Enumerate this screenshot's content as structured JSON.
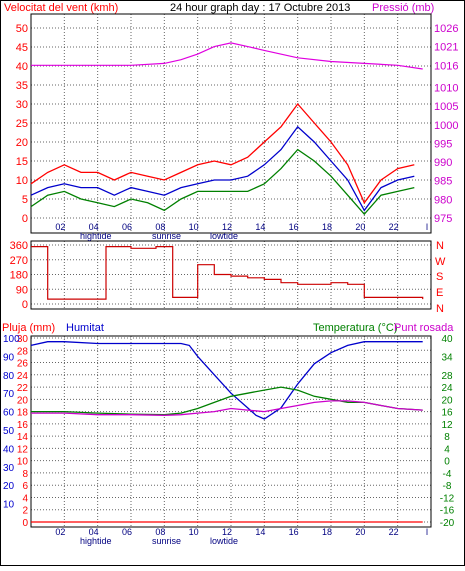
{
  "header": {
    "wind_label": "Velocitat del vent (kmh)",
    "title": "24 hour graph day : 17 Octubre 2013",
    "pressure_label": "Pressió (mb)"
  },
  "labels": {
    "rain": "Pluja (mm)",
    "humidity": "Humitat",
    "temperature": "Temperatura (°C)",
    "dewpoint": "Punt rosada",
    "hightide": "hightide",
    "sunrise": "sunrise",
    "lowtide": "lowtide",
    "compass": [
      "N",
      "W",
      "S",
      "E",
      "N"
    ]
  },
  "colors": {
    "wind_gust": "#ff0000",
    "wind_avg": "#0000cc",
    "wind_low": "#008000",
    "pressure": "#e000e0",
    "direction": "#cc0000",
    "humidity": "#0000cc",
    "temperature": "#008000",
    "dewpoint": "#cc00cc",
    "rain": "#ff0000",
    "axis_left": "#ff0000",
    "axis_right_top": "#cc00cc",
    "axis_right_bottom": "#008000"
  },
  "chart_data": [
    {
      "type": "line",
      "name_hint": "wind and pressure",
      "x_ticks": [
        "02",
        "04",
        "06",
        "08",
        "10",
        "12",
        "14",
        "16",
        "18",
        "20",
        "22",
        "l"
      ],
      "y_left": {
        "label": "Velocitat del vent (kmh)",
        "ticks": [
          0,
          5,
          10,
          15,
          20,
          25,
          30,
          35,
          40,
          45,
          50
        ],
        "range": [
          0,
          50
        ]
      },
      "y_right": {
        "label": "Pressió (mb)",
        "ticks": [
          975,
          980,
          985,
          990,
          995,
          1000,
          1005,
          1010,
          1016,
          1021,
          1026
        ],
        "range": [
          975,
          1026
        ]
      },
      "series": [
        {
          "name": "Pressió (mb)",
          "axis": "right",
          "x": [
            0,
            4,
            6,
            8,
            9,
            10,
            11,
            12,
            13,
            14,
            16,
            18,
            20,
            22,
            23.5
          ],
          "y": [
            1016,
            1016,
            1016,
            1016.5,
            1017.5,
            1019,
            1021,
            1022,
            1021,
            1020,
            1018,
            1017,
            1016.5,
            1016,
            1015
          ]
        },
        {
          "name": "gust",
          "axis": "left",
          "x": [
            0,
            1,
            2,
            3,
            4,
            5,
            6,
            7,
            8,
            9,
            10,
            11,
            12,
            13,
            14,
            15,
            16,
            17,
            18,
            19,
            20,
            21,
            22,
            23
          ],
          "y": [
            9,
            12,
            14,
            12,
            12,
            10,
            12,
            11,
            10,
            12,
            14,
            15,
            14,
            16,
            20,
            24,
            30,
            25,
            20,
            14,
            4,
            10,
            13,
            14
          ]
        },
        {
          "name": "average",
          "axis": "left",
          "x": [
            0,
            1,
            2,
            3,
            4,
            5,
            6,
            7,
            8,
            9,
            10,
            11,
            12,
            13,
            14,
            15,
            16,
            17,
            18,
            19,
            20,
            21,
            22,
            23
          ],
          "y": [
            6,
            8,
            9,
            8,
            8,
            6,
            8,
            7,
            6,
            8,
            9,
            10,
            10,
            11,
            14,
            18,
            24,
            20,
            15,
            10,
            2,
            8,
            10,
            11
          ]
        },
        {
          "name": "low",
          "axis": "left",
          "x": [
            0,
            1,
            2,
            3,
            4,
            5,
            6,
            7,
            8,
            9,
            10,
            11,
            12,
            13,
            14,
            15,
            16,
            17,
            18,
            19,
            20,
            21,
            22,
            23
          ],
          "y": [
            3,
            6,
            7,
            5,
            4,
            3,
            5,
            4,
            2,
            5,
            7,
            7,
            7,
            7,
            9,
            13,
            18,
            15,
            11,
            6,
            1,
            6,
            7,
            8
          ]
        }
      ]
    },
    {
      "type": "line",
      "name_hint": "wind direction",
      "x_ticks": [
        "02",
        "04",
        "06",
        "08",
        "10",
        "12",
        "14",
        "16",
        "18",
        "20",
        "22",
        "l"
      ],
      "y_left": {
        "ticks": [
          0,
          90,
          180,
          270,
          360
        ],
        "range": [
          0,
          360
        ]
      },
      "series": [
        {
          "name": "direction",
          "x": [
            0,
            0.5,
            1,
            1.5,
            2,
            3,
            4,
            4.5,
            5,
            6,
            7,
            7.5,
            8,
            8.5,
            9,
            9.5,
            10,
            11,
            12,
            13,
            14,
            15,
            16,
            17,
            18,
            19,
            20,
            21,
            22,
            23,
            23.5
          ],
          "y": [
            350,
            350,
            30,
            30,
            30,
            30,
            30,
            350,
            350,
            340,
            340,
            350,
            350,
            40,
            40,
            40,
            240,
            180,
            170,
            160,
            150,
            130,
            120,
            120,
            130,
            120,
            40,
            40,
            40,
            40,
            30
          ]
        }
      ]
    },
    {
      "type": "line",
      "name_hint": "rain humidity temperature dewpoint",
      "x_ticks": [
        "02",
        "04",
        "06",
        "08",
        "10",
        "12",
        "14",
        "16",
        "18",
        "20",
        "22",
        "l"
      ],
      "y_left": {
        "label": "Pluja (mm)",
        "ticks": [
          0,
          2,
          4,
          6,
          8,
          10,
          12,
          14,
          16,
          18,
          20,
          22,
          24,
          26,
          28,
          30
        ],
        "range": [
          0,
          30
        ]
      },
      "y_humidity": {
        "label": "Humitat",
        "ticks": [
          10,
          20,
          30,
          40,
          50,
          60,
          70,
          80,
          90,
          100
        ],
        "range": [
          0,
          100
        ]
      },
      "y_right": {
        "label": "Temperatura (°C)",
        "ticks": [
          -20,
          -16,
          -12,
          -8,
          -4,
          0,
          4,
          8,
          12,
          16,
          20,
          24,
          28,
          34,
          40
        ],
        "range": [
          -20,
          40
        ]
      },
      "series": [
        {
          "name": "Humitat",
          "axis": "humidity",
          "x": [
            0,
            1,
            2,
            4,
            6,
            8,
            9,
            9.5,
            10,
            11,
            12,
            13,
            13.5,
            14,
            15,
            16,
            17,
            18,
            19,
            20,
            21,
            22,
            23.5
          ],
          "y": [
            96,
            98,
            98,
            97,
            97,
            97,
            97,
            96,
            90,
            80,
            70,
            62,
            58,
            56,
            62,
            75,
            86,
            92,
            96,
            98,
            98,
            98,
            98
          ]
        },
        {
          "name": "Temperatura (°C)",
          "axis": "right",
          "x": [
            0,
            2,
            4,
            6,
            8,
            9,
            10,
            11,
            12,
            13,
            14,
            15,
            16,
            17,
            18,
            19,
            20,
            21,
            22,
            23.5
          ],
          "y": [
            16,
            16,
            15.5,
            15.2,
            15,
            15.5,
            17,
            19,
            21,
            22,
            23,
            24,
            23,
            21,
            20,
            19,
            19,
            18,
            17,
            16.5
          ]
        },
        {
          "name": "Punt rosada",
          "axis": "right",
          "x": [
            0,
            2,
            4,
            6,
            8,
            9,
            10,
            11,
            12,
            13,
            14,
            15,
            16,
            17,
            18,
            19,
            20,
            21,
            22,
            23.5
          ],
          "y": [
            15.5,
            15.5,
            15,
            15,
            14.8,
            15,
            15.5,
            16,
            17,
            16.5,
            16,
            17,
            18,
            19,
            19.5,
            19.5,
            19,
            18,
            17,
            16.5
          ]
        },
        {
          "name": "Pluja (mm)",
          "axis": "left",
          "x": [
            0,
            23.5
          ],
          "y": [
            0,
            0
          ]
        }
      ]
    }
  ]
}
